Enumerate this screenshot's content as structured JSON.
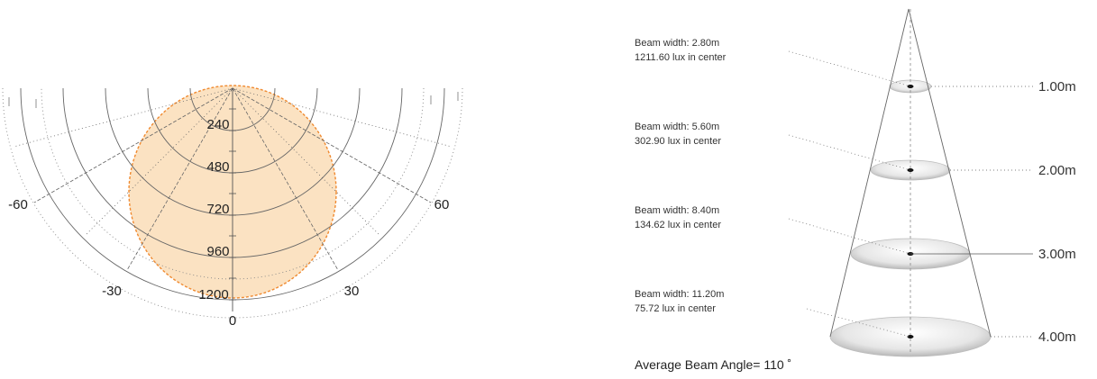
{
  "polar": {
    "radial_labels": [
      "240",
      "480",
      "720",
      "960",
      "1200"
    ],
    "angle_labels": {
      "m60": "-60",
      "m30": "-30",
      "zero": "0",
      "p30": "30",
      "p60": "60"
    },
    "fill_color": "#fbe2c2",
    "edge_color": "#f08a30"
  },
  "cone": {
    "levels": [
      {
        "width": "Beam width: 2.80m",
        "lux": "1211.60 lux in center",
        "distance": "1.00m"
      },
      {
        "width": "Beam width: 5.60m",
        "lux": "302.90 lux in center",
        "distance": "2.00m"
      },
      {
        "width": "Beam width: 8.40m",
        "lux": "134.62 lux in center",
        "distance": "3.00m"
      },
      {
        "width": "Beam width: 11.20m",
        "lux": "75.72 lux in center",
        "distance": "4.00m"
      }
    ],
    "average": "Average Beam Angle= 110 ˚"
  }
}
